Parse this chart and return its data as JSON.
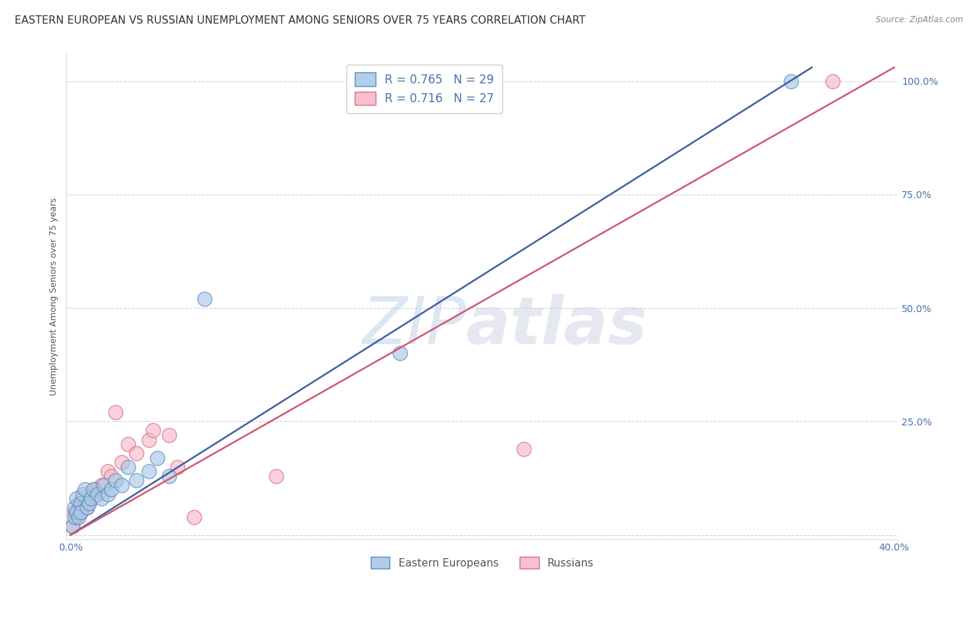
{
  "title": "EASTERN EUROPEAN VS RUSSIAN UNEMPLOYMENT AMONG SENIORS OVER 75 YEARS CORRELATION CHART",
  "source": "Source: ZipAtlas.com",
  "ylabel": "Unemployment Among Seniors over 75 years",
  "xlim": [
    -0.002,
    0.402
  ],
  "ylim": [
    -0.01,
    1.06
  ],
  "xtick_positions": [
    0.0,
    0.1,
    0.2,
    0.3,
    0.4
  ],
  "xtick_labels": [
    "0.0%",
    "",
    "",
    "",
    "40.0%"
  ],
  "ytick_positions": [
    0.0,
    0.25,
    0.5,
    0.75,
    1.0
  ],
  "ytick_labels": [
    "",
    "25.0%",
    "50.0%",
    "75.0%",
    "100.0%"
  ],
  "blue_face_color": "#a8c8e8",
  "blue_edge_color": "#5080b0",
  "pink_face_color": "#f8b8c8",
  "pink_edge_color": "#d06080",
  "blue_line_color": "#4060a0",
  "pink_line_color": "#d05870",
  "legend_blue_label": "R = 0.765   N = 29",
  "legend_pink_label": "R = 0.716   N = 27",
  "legend_bottom_blue": "Eastern Europeans",
  "legend_bottom_pink": "Russians",
  "watermark_zip": "ZIP",
  "watermark_atlas": "atlas",
  "background_color": "#ffffff",
  "grid_color": "#cccccc",
  "title_fontsize": 11,
  "label_fontsize": 9,
  "tick_fontsize": 10,
  "tick_color": "#4a72b0",
  "blue_points_x": [
    0.001,
    0.002,
    0.002,
    0.003,
    0.003,
    0.004,
    0.005,
    0.005,
    0.006,
    0.007,
    0.008,
    0.009,
    0.01,
    0.011,
    0.013,
    0.015,
    0.016,
    0.018,
    0.02,
    0.022,
    0.025,
    0.028,
    0.032,
    0.038,
    0.042,
    0.048,
    0.065,
    0.16,
    0.35
  ],
  "blue_points_y": [
    0.02,
    0.04,
    0.06,
    0.05,
    0.08,
    0.04,
    0.07,
    0.05,
    0.09,
    0.1,
    0.06,
    0.07,
    0.08,
    0.1,
    0.09,
    0.08,
    0.11,
    0.09,
    0.1,
    0.12,
    0.11,
    0.15,
    0.12,
    0.14,
    0.17,
    0.13,
    0.52,
    0.4,
    1.0
  ],
  "pink_points_x": [
    0.001,
    0.002,
    0.003,
    0.004,
    0.005,
    0.006,
    0.007,
    0.008,
    0.009,
    0.01,
    0.012,
    0.013,
    0.015,
    0.018,
    0.02,
    0.022,
    0.025,
    0.028,
    0.032,
    0.038,
    0.04,
    0.048,
    0.052,
    0.06,
    0.1,
    0.22,
    0.37
  ],
  "pink_points_y": [
    0.02,
    0.05,
    0.04,
    0.07,
    0.05,
    0.08,
    0.07,
    0.06,
    0.09,
    0.08,
    0.1,
    0.09,
    0.11,
    0.14,
    0.13,
    0.27,
    0.16,
    0.2,
    0.18,
    0.21,
    0.23,
    0.22,
    0.15,
    0.04,
    0.13,
    0.19,
    1.0
  ],
  "blue_line_x": [
    0.0,
    0.36
  ],
  "blue_line_y": [
    0.0,
    1.03
  ],
  "pink_line_x": [
    0.0,
    0.4
  ],
  "pink_line_y": [
    0.0,
    1.03
  ]
}
